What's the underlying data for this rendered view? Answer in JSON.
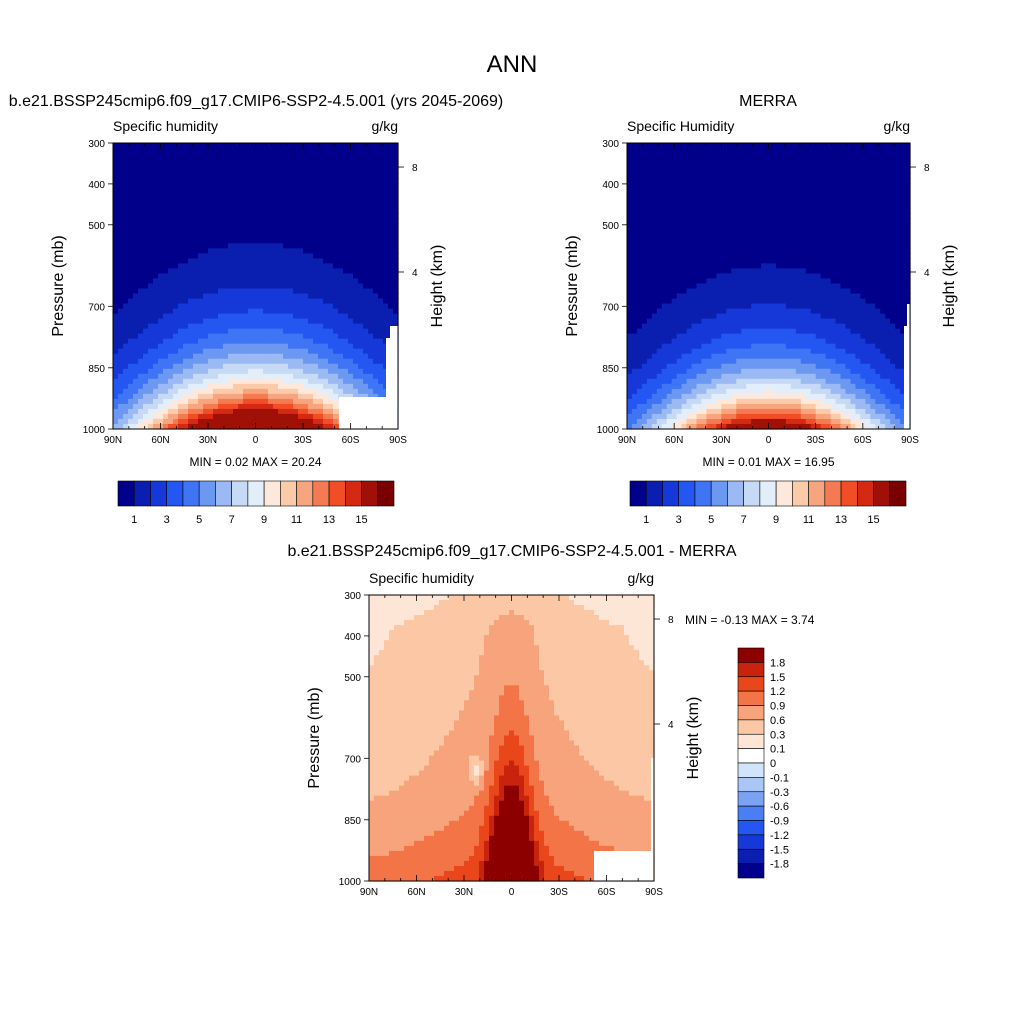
{
  "figure": {
    "title": "ANN"
  },
  "chart_data": [
    {
      "type": "heatmap",
      "title": "b.e21.BSSP245cmip6.f09_g17.CMIP6-SSP2-4.5.001 (yrs 2045-2069)",
      "left_label": "Specific humidity",
      "right_label": "g/kg",
      "ylabel": "Pressure (mb)",
      "y2label": "Height (km)",
      "x_ticks": [
        "90N",
        "60N",
        "30N",
        "0",
        "30S",
        "60S",
        "90S"
      ],
      "y_ticks": [
        "300",
        "400",
        "500",
        "700",
        "850",
        "1000"
      ],
      "y2_ticks": [
        "8",
        "4"
      ],
      "stats": {
        "min_label": "MIN =",
        "min": "0.02",
        "max_label": "MAX =",
        "max": "20.24"
      },
      "colorbar": {
        "levels": [
          "1",
          "2",
          "3",
          "4",
          "5",
          "6",
          "7",
          "8",
          "9",
          "10",
          "11",
          "12",
          "13",
          "14",
          "15"
        ],
        "tick_labels": [
          "1",
          "3",
          "5",
          "7",
          "9",
          "11",
          "13",
          "15"
        ],
        "colors": [
          "#00008a",
          "#0a1fb0",
          "#1638d8",
          "#2456f2",
          "#3f75f5",
          "#6d98f2",
          "#9bbaf3",
          "#c6d9f5",
          "#e3eefb",
          "#fde8db",
          "#fbcaa8",
          "#f7a57f",
          "#f47a51",
          "#f14d26",
          "#d42a14",
          "#a01006",
          "#780000"
        ]
      },
      "profile": {
        "peak": 20.2,
        "pressure_scale": 150,
        "lat_width": 58,
        "land_mask_color": "#ffffff"
      }
    },
    {
      "type": "heatmap",
      "title": "MERRA",
      "left_label": "Specific Humidity",
      "right_label": "g/kg",
      "ylabel": "Pressure (mb)",
      "y2label": "Height (km)",
      "x_ticks": [
        "90N",
        "60N",
        "30N",
        "0",
        "30S",
        "60S",
        "90S"
      ],
      "y_ticks": [
        "300",
        "400",
        "500",
        "700",
        "850",
        "1000"
      ],
      "y2_ticks": [
        "8",
        "4"
      ],
      "stats": {
        "min_label": "MIN =",
        "min": "0.01",
        "max_label": "MAX =",
        "max": "16.95"
      },
      "colorbar": {
        "levels": [
          "1",
          "2",
          "3",
          "4",
          "5",
          "6",
          "7",
          "8",
          "9",
          "10",
          "11",
          "12",
          "13",
          "14",
          "15"
        ],
        "tick_labels": [
          "1",
          "3",
          "5",
          "7",
          "9",
          "11",
          "13",
          "15"
        ],
        "colors": [
          "#00008a",
          "#0a1fb0",
          "#1638d8",
          "#2456f2",
          "#3f75f5",
          "#6d98f2",
          "#9bbaf3",
          "#c6d9f5",
          "#e3eefb",
          "#fde8db",
          "#fbcaa8",
          "#f7a57f",
          "#f47a51",
          "#f14d26",
          "#d42a14",
          "#a01006",
          "#780000"
        ]
      },
      "profile": {
        "peak": 17.0,
        "pressure_scale": 140,
        "lat_width": 55,
        "land_mask_color": "#ffffff"
      }
    },
    {
      "type": "heatmap",
      "title": "b.e21.BSSP245cmip6.f09_g17.CMIP6-SSP2-4.5.001 - MERRA",
      "left_label": "Specific humidity",
      "right_label": "g/kg",
      "ylabel": "Pressure (mb)",
      "y2label": "Height (km)",
      "x_ticks": [
        "90N",
        "60N",
        "30N",
        "0",
        "30S",
        "60S",
        "90S"
      ],
      "y_ticks": [
        "300",
        "400",
        "500",
        "700",
        "850",
        "1000"
      ],
      "y2_ticks": [
        "8",
        "4"
      ],
      "stats": {
        "min_label": "MIN =",
        "min": "-0.13",
        "max_label": "MAX =",
        "max": "3.74"
      },
      "colorbar": {
        "levels": [
          "-1.8",
          "-1.5",
          "-1.2",
          "-0.9",
          "-0.6",
          "-0.3",
          "-0.1",
          "0",
          "0.1",
          "0.3",
          "0.6",
          "0.9",
          "1.2",
          "1.5",
          "1.8"
        ],
        "tick_labels": [
          "-1.8",
          "-1.5",
          "-1.2",
          "-0.9",
          "-0.6",
          "-0.3",
          "-0.1",
          "0",
          "0.1",
          "0.3",
          "0.6",
          "0.9",
          "1.2",
          "1.5",
          "1.8"
        ],
        "colors": [
          "#00008a",
          "#0a1fb0",
          "#1638d8",
          "#2456f2",
          "#4a7ef5",
          "#7aa3f3",
          "#a9c6f5",
          "#d2e4f9",
          "#ffffff",
          "#fde6d6",
          "#fbc7a5",
          "#f7a37c",
          "#f27447",
          "#e9461c",
          "#c8230d",
          "#8c0000"
        ]
      },
      "profile": {
        "peak": 3.74,
        "pressure_scale": 0,
        "lat_width": 12,
        "land_mask_color": "#ffffff"
      }
    }
  ]
}
